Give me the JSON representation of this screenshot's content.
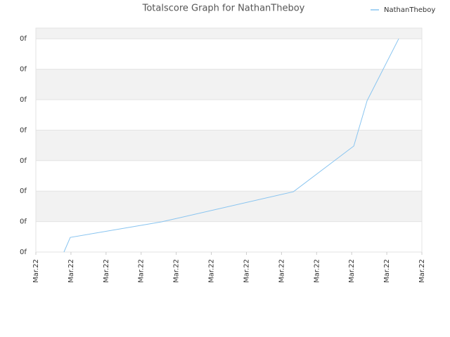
{
  "chart_data": {
    "type": "line",
    "title": "Totalscore Graph for NathanTheboy",
    "x": [
      0.8,
      0.98,
      3.58,
      7.34,
      9.06,
      9.44,
      10.34
    ],
    "series": [
      {
        "name": "NathanTheboy",
        "color": "#88c4f0",
        "values": [
          0,
          0.48,
          0.99,
          1.98,
          3.48,
          4.97,
          7.0
        ]
      }
    ],
    "xlim": [
      0,
      11
    ],
    "xticks": [
      {
        "value": 0,
        "label": "Mar.22"
      },
      {
        "value": 1,
        "label": "Mar.22"
      },
      {
        "value": 2,
        "label": "Mar.22"
      },
      {
        "value": 3,
        "label": "Mar.22"
      },
      {
        "value": 4,
        "label": "Mar.22"
      },
      {
        "value": 5,
        "label": "Mar.22"
      },
      {
        "value": 6,
        "label": "Mar.22"
      },
      {
        "value": 7,
        "label": "Mar.22"
      },
      {
        "value": 8,
        "label": "Mar.22"
      },
      {
        "value": 9,
        "label": "Mar.22"
      },
      {
        "value": 10,
        "label": "Mar.22"
      },
      {
        "value": 11,
        "label": "Mar.22"
      }
    ],
    "ylim": [
      0,
      7.35
    ],
    "yticks": [
      {
        "value": 0,
        "label": "0f"
      },
      {
        "value": 1,
        "label": "0f"
      },
      {
        "value": 2,
        "label": "0f"
      },
      {
        "value": 3,
        "label": "0f"
      },
      {
        "value": 4,
        "label": "0f"
      },
      {
        "value": 5,
        "label": "0f"
      },
      {
        "value": 6,
        "label": "0f"
      },
      {
        "value": 7,
        "label": "0f"
      }
    ],
    "grid": true,
    "legend": "top-right"
  }
}
